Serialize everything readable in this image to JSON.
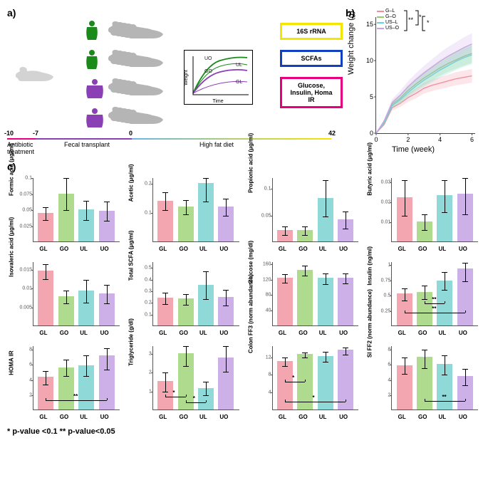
{
  "panel_a": {
    "label": "a)",
    "donor_colors": [
      "#1a8a1a",
      "#1a8a1a",
      "#8b3fb5",
      "#8b3fb5"
    ],
    "donor_shapes": [
      "lean",
      "lean",
      "obese",
      "obese"
    ],
    "mouse_color": "#b5b5b5",
    "boxes": [
      {
        "text": "16S rRNA",
        "color": "#f5e600"
      },
      {
        "text": "SCFAs",
        "color": "#1040c0"
      },
      {
        "text": "Glucose, Insulin, Homa IR",
        "color": "#e6007e"
      }
    ],
    "mini_chart": {
      "xlabel": "Time",
      "ylabel": "Weight",
      "lines": [
        {
          "label": "UO",
          "color": "#1a8a1a"
        },
        {
          "label": "UL",
          "color": "#1a8a1a"
        },
        {
          "label": "GO",
          "color": "#8b3fb5"
        },
        {
          "label": "GL",
          "color": "#8b3fb5"
        }
      ]
    },
    "timeline": {
      "ticks": [
        {
          "x": -10,
          "label": "-10"
        },
        {
          "x": -7,
          "label": "-7"
        },
        {
          "x": 0,
          "label": "0"
        },
        {
          "x": 42,
          "label": "42"
        }
      ],
      "labels": [
        {
          "text": "Antibiotic treatment",
          "x": 0
        },
        {
          "text": "Fecal transplant",
          "x": 1
        },
        {
          "text": "High fat diet",
          "x": 2
        }
      ],
      "segments": [
        {
          "color": "#e6007e",
          "from": 0,
          "to": 40
        },
        {
          "color": "#8b3fb5",
          "from": 40,
          "to": 175
        },
        {
          "color1": "#6bb5e6",
          "color2": "#f5e600",
          "from": 175,
          "to": 455
        }
      ]
    }
  },
  "panel_b": {
    "label": "b)",
    "ytitle": "Weight change (g)",
    "xtitle": "Time (week)",
    "xticks": [
      0,
      2,
      4,
      6
    ],
    "yticks": [
      0,
      5,
      10,
      15
    ],
    "ylim": [
      0,
      16
    ],
    "xlim": [
      0,
      6.2
    ],
    "series": [
      {
        "name": "G–L",
        "color": "#f28c9b",
        "values": [
          0,
          1.2,
          3.5,
          4.1,
          4.9,
          5.5,
          6.2,
          6.6,
          6.9,
          7.2,
          7.5,
          7.7,
          7.9
        ]
      },
      {
        "name": "G–O",
        "color": "#8fce6b",
        "values": [
          0,
          1.5,
          4.0,
          4.8,
          5.9,
          6.8,
          7.6,
          8.3,
          9.0,
          9.6,
          10.1,
          10.6,
          11.0
        ]
      },
      {
        "name": "US–L",
        "color": "#6bd4d4",
        "values": [
          0,
          1.4,
          3.8,
          4.6,
          5.6,
          6.5,
          7.3,
          8.0,
          8.7,
          9.3,
          9.9,
          10.4,
          10.8
        ]
      },
      {
        "name": "US–O",
        "color": "#c9a0e6",
        "values": [
          0,
          1.7,
          4.2,
          5.2,
          6.4,
          7.4,
          8.3,
          9.1,
          9.9,
          10.6,
          11.2,
          11.8,
          12.3
        ]
      }
    ],
    "sig_annotations": [
      "**",
      "*",
      "*"
    ]
  },
  "panel_c": {
    "label": "c)",
    "categories": [
      "GL",
      "GO",
      "UL",
      "UO"
    ],
    "colors": {
      "GL": "#f4a6b0",
      "GO": "#aedb8e",
      "UL": "#8fd9d9",
      "UO": "#cdb0e8"
    },
    "panels": [
      {
        "title": "Formic acid (μg/ml)",
        "ylim": [
          0,
          0.1
        ],
        "yticks": [
          0.025,
          0.05,
          0.075,
          0.1
        ],
        "values": [
          0.045,
          0.075,
          0.05,
          0.048
        ],
        "errs": {
          "GL": [
            0.035,
            0.055
          ],
          "GO": [
            0.05,
            0.1
          ],
          "UL": [
            0.035,
            0.065
          ],
          "UO": [
            0.033,
            0.063
          ]
        },
        "sig": []
      },
      {
        "title": "Acetic (μg/ml)",
        "ylim": [
          0,
          0.22
        ],
        "yticks": [
          0.1,
          0.2
        ],
        "values": [
          0.14,
          0.12,
          0.2,
          0.12
        ],
        "errs": {
          "GL": [
            0.11,
            0.17
          ],
          "GO": [
            0.095,
            0.145
          ],
          "UL": [
            0.14,
            0.22
          ],
          "UO": [
            0.09,
            0.15
          ]
        },
        "sig": []
      },
      {
        "title": "Propionic acid (μg/ml)",
        "ylim": [
          0,
          0.12
        ],
        "yticks": [
          0.05,
          0.1
        ],
        "values": [
          0.022,
          0.022,
          0.082,
          0.042
        ],
        "errs": {
          "GL": [
            0.014,
            0.03
          ],
          "GO": [
            0.014,
            0.03
          ],
          "UL": [
            0.048,
            0.116
          ],
          "UO": [
            0.026,
            0.058
          ]
        },
        "sig": []
      },
      {
        "title": "Butyric acid (μg/ml)",
        "ylim": [
          0,
          0.032
        ],
        "yticks": [
          0.01,
          0.02,
          0.03
        ],
        "values": [
          0.022,
          0.01,
          0.023,
          0.024
        ],
        "errs": {
          "GL": [
            0.013,
            0.031
          ],
          "GO": [
            0.006,
            0.014
          ],
          "UL": [
            0.015,
            0.031
          ],
          "UO": [
            0.014,
            0.032
          ]
        },
        "sig": []
      },
      {
        "title": "Isovaleric acid (μg/ml)",
        "ylim": [
          0,
          0.017
        ],
        "yticks": [
          0.005,
          0.01,
          0.015
        ],
        "values": [
          0.0145,
          0.0077,
          0.0092,
          0.0085
        ],
        "errs": {
          "GL": [
            0.0125,
            0.0165
          ],
          "GO": [
            0.006,
            0.0094
          ],
          "UL": [
            0.0062,
            0.0122
          ],
          "UO": [
            0.006,
            0.011
          ]
        },
        "sig": []
      },
      {
        "title": "Total SCFA (μg/ml)",
        "ylim": [
          0,
          0.55
        ],
        "yticks": [
          0.1,
          0.2,
          0.3,
          0.4,
          0.5
        ],
        "values": [
          0.24,
          0.23,
          0.35,
          0.245
        ],
        "errs": {
          "GL": [
            0.19,
            0.29
          ],
          "GO": [
            0.185,
            0.275
          ],
          "UL": [
            0.23,
            0.47
          ],
          "UO": [
            0.18,
            0.31
          ]
        },
        "sig": []
      },
      {
        "title": "Glucose (mg/dl)",
        "ylim": [
          0,
          165
        ],
        "yticks": [
          40,
          80,
          120,
          160
        ],
        "values": [
          123,
          143,
          122,
          123
        ],
        "errs": {
          "GL": [
            112,
            134
          ],
          "GO": [
            130,
            156
          ],
          "UL": [
            109,
            135
          ],
          "UO": [
            110,
            136
          ]
        },
        "sig": []
      },
      {
        "title": "Insulin (ng/ml)",
        "ylim": [
          0,
          1.05
        ],
        "yticks": [
          0.25,
          0.5,
          0.75,
          1.0
        ],
        "values": [
          0.52,
          0.55,
          0.74,
          0.93
        ],
        "errs": {
          "GL": [
            0.42,
            0.62
          ],
          "GO": [
            0.44,
            0.66
          ],
          "UL": [
            0.59,
            0.89
          ],
          "UO": [
            0.73,
            1.04
          ]
        },
        "sig": [
          {
            "from": 1,
            "to": 2,
            "label": "**",
            "y": 0.37
          },
          {
            "from": 0,
            "to": 3,
            "label": "**",
            "y": 0.22
          }
        ]
      },
      {
        "title": "HOMA IR",
        "ylim": [
          0,
          8.5
        ],
        "yticks": [
          2,
          4,
          6,
          8
        ],
        "values": [
          4.3,
          5.6,
          5.9,
          7.2
        ],
        "errs": {
          "GL": [
            3.4,
            5.2
          ],
          "GO": [
            4.5,
            6.7
          ],
          "UL": [
            4.5,
            7.3
          ],
          "UO": [
            5.4,
            8.2
          ]
        },
        "sig": [
          {
            "from": 0,
            "to": 3,
            "label": "**",
            "y": 1.3
          }
        ]
      },
      {
        "title": "Triglyceride (g/dl)",
        "ylim": [
          0,
          3.4
        ],
        "yticks": [
          1,
          2,
          3
        ],
        "values": [
          1.5,
          3.0,
          1.15,
          2.75
        ],
        "errs": {
          "GL": [
            1.0,
            2.0
          ],
          "GO": [
            2.35,
            3.4
          ],
          "UL": [
            0.8,
            1.5
          ],
          "UO": [
            2.05,
            3.4
          ]
        },
        "sig": [
          {
            "from": 0,
            "to": 1,
            "label": "*",
            "y": 0.7
          },
          {
            "from": 1,
            "to": 2,
            "label": "*",
            "y": 0.4
          }
        ]
      },
      {
        "title": "Colon FF3 (norm abundance)",
        "ylim": [
          0,
          14.5
        ],
        "yticks": [
          4,
          8,
          12
        ],
        "values": [
          11,
          12.5,
          12.1,
          13.6
        ],
        "errs": {
          "GL": [
            10,
            12
          ],
          "GO": [
            12,
            13
          ],
          "UL": [
            11,
            13.2
          ],
          "UO": [
            12.5,
            14.2
          ]
        },
        "sig": [
          {
            "from": 0,
            "to": 1,
            "label": "*",
            "y": 6.5
          },
          {
            "from": 0,
            "to": 3,
            "label": "*",
            "y": 2.0
          }
        ]
      },
      {
        "title": "SI FF2 (norm abundance)",
        "ylim": [
          0,
          8.5
        ],
        "yticks": [
          2,
          4,
          6,
          8
        ],
        "values": [
          5.9,
          7.0,
          6.0,
          4.4
        ],
        "errs": {
          "GL": [
            4.8,
            7.0
          ],
          "GO": [
            5.6,
            8.0
          ],
          "UL": [
            4.7,
            7.3
          ],
          "UO": [
            3.3,
            5.5
          ]
        },
        "sig": [
          {
            "from": 1,
            "to": 3,
            "label": "**",
            "y": 1.2
          }
        ]
      }
    ]
  },
  "footer": "* p-value <0.1 ** p-value<0.05"
}
